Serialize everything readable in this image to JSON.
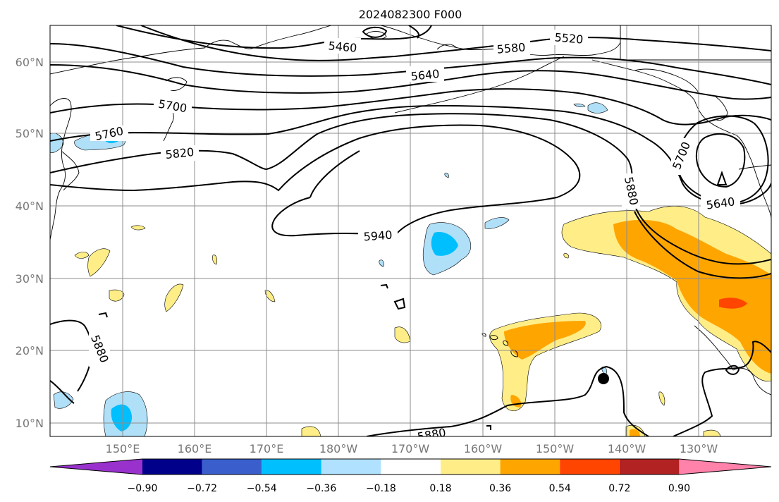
{
  "title": "2024082300 F000",
  "lat_ticks": [
    "60°N",
    "50°N",
    "40°N",
    "30°N",
    "20°N",
    "10°N"
  ],
  "lon_ticks": [
    "150°E",
    "160°E",
    "170°E",
    "180°W",
    "170°W",
    "160°W",
    "150°W",
    "140°W",
    "130°W"
  ],
  "contour_labels": [
    "5460",
    "5520",
    "5580",
    "5640",
    "5700",
    "5760",
    "5820",
    "5880",
    "5940",
    "5700",
    "5640",
    "5880",
    "5880"
  ],
  "colorbar": {
    "colors": [
      "#9932cc",
      "#00008b",
      "#3a5fcd",
      "#00bfff",
      "#b0e2ff",
      "#ffffff",
      "#ffee88",
      "#ffa500",
      "#ff4500",
      "#b22222",
      "#ff82ab"
    ],
    "labels": [
      "−0.90",
      "−0.72",
      "−0.54",
      "−0.36",
      "−0.18",
      "0.18",
      "0.36",
      "0.54",
      "0.72",
      "0.90"
    ]
  }
}
